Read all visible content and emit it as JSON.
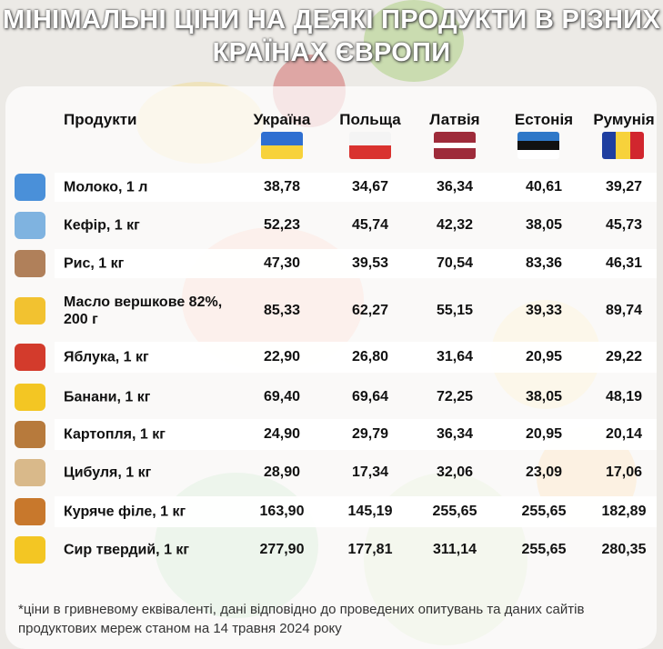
{
  "header": {
    "title": "МІНІМАЛЬНІ ЦІНИ НА ДЕЯКІ ПРОДУКТИ В РІЗНИХ КРАЇНАХ ЄВРОПИ"
  },
  "table": {
    "columns": [
      "Продукти",
      "Україна",
      "Польща",
      "Латвія",
      "Естонія",
      "Румунія"
    ],
    "rows": [
      [
        "Молоко, 1 л",
        "38,78",
        "34,67",
        "36,34",
        "40,61",
        "39,27"
      ],
      [
        "Кефір, 1 кг",
        "52,23",
        "45,74",
        "42,32",
        "38,05",
        "45,73"
      ],
      [
        "Рис, 1 кг",
        "47,30",
        "39,53",
        "70,54",
        "83,36",
        "46,31"
      ],
      [
        "Масло вершкове 82%, 200 г",
        "85,33",
        "62,27",
        "55,15",
        "39,33",
        "89,74"
      ],
      [
        "Яблука, 1 кг",
        "22,90",
        "26,80",
        "31,64",
        "20,95",
        "29,22"
      ],
      [
        "Банани, 1 кг",
        "69,40",
        "69,64",
        "72,25",
        "38,05",
        "48,19"
      ],
      [
        "Картопля, 1 кг",
        "24,90",
        "29,79",
        "36,34",
        "20,95",
        "20,14"
      ],
      [
        "Цибуля, 1 кг",
        "28,90",
        "17,34",
        "32,06",
        "23,09",
        "17,06"
      ],
      [
        "Куряче філе, 1 кг",
        "163,90",
        "145,19",
        "255,65",
        "255,65",
        "182,89"
      ],
      [
        "Сир твердий, 1 кг",
        "277,90",
        "177,81",
        "311,14",
        "255,65",
        "280,35"
      ]
    ]
  },
  "footnote": "*ціни в гривневому еквіваленті, дані відповідно до проведених опитувань та даних сайтів продуктових мереж станом на 14 травня 2024 року"
}
